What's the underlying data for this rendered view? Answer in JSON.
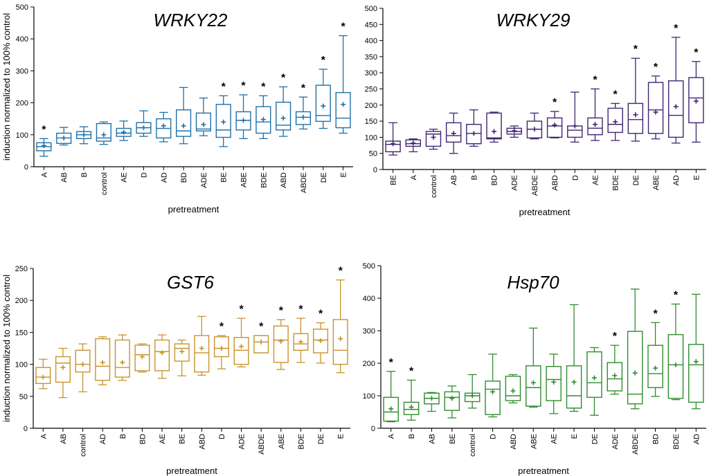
{
  "chart_data": [
    {
      "type": "boxplot",
      "title": "WRKY22",
      "xlabel": "pretreatment",
      "ylabel": "induction normalized to 100% control",
      "ylim": [
        0,
        500
      ],
      "yticks": [
        0,
        100,
        200,
        300,
        400,
        500
      ],
      "color": "#1f6fa8",
      "categories": [
        "A",
        "AB",
        "B",
        "control",
        "AE",
        "D",
        "AD",
        "BD",
        "ADE",
        "BE",
        "ABE",
        "BDE",
        "ABD",
        "ABDE",
        "DE",
        "E"
      ],
      "boxes": [
        {
          "min": 33,
          "q1": 50,
          "median": 63,
          "q3": 75,
          "max": 88,
          "mean": 66,
          "sig": true
        },
        {
          "min": 68,
          "q1": 73,
          "median": 90,
          "q3": 105,
          "max": 123,
          "mean": 90,
          "sig": false
        },
        {
          "min": 72,
          "q1": 88,
          "median": 100,
          "q3": 110,
          "max": 125,
          "mean": 100,
          "sig": false
        },
        {
          "min": 70,
          "q1": 80,
          "median": 90,
          "q3": 135,
          "max": 140,
          "mean": 100,
          "sig": false
        },
        {
          "min": 82,
          "q1": 95,
          "median": 105,
          "q3": 120,
          "max": 143,
          "mean": 108,
          "sig": false
        },
        {
          "min": 95,
          "q1": 105,
          "median": 122,
          "q3": 138,
          "max": 175,
          "mean": 122,
          "sig": false
        },
        {
          "min": 78,
          "q1": 90,
          "median": 120,
          "q3": 150,
          "max": 170,
          "mean": 128,
          "sig": false
        },
        {
          "min": 72,
          "q1": 95,
          "median": 112,
          "q3": 178,
          "max": 248,
          "mean": 128,
          "sig": false
        },
        {
          "min": 97,
          "q1": 112,
          "median": 118,
          "q3": 168,
          "max": 215,
          "mean": 132,
          "sig": false
        },
        {
          "min": 63,
          "q1": 92,
          "median": 115,
          "q3": 195,
          "max": 222,
          "mean": 140,
          "sig": true
        },
        {
          "min": 88,
          "q1": 115,
          "median": 145,
          "q3": 172,
          "max": 225,
          "mean": 145,
          "sig": true
        },
        {
          "min": 88,
          "q1": 105,
          "median": 140,
          "q3": 188,
          "max": 222,
          "mean": 148,
          "sig": true
        },
        {
          "min": 95,
          "q1": 115,
          "median": 130,
          "q3": 202,
          "max": 250,
          "mean": 152,
          "sig": true
        },
        {
          "min": 118,
          "q1": 132,
          "median": 155,
          "q3": 172,
          "max": 218,
          "mean": 155,
          "sig": true
        },
        {
          "min": 120,
          "q1": 142,
          "median": 160,
          "q3": 255,
          "max": 305,
          "mean": 190,
          "sig": true
        },
        {
          "min": 105,
          "q1": 122,
          "median": 152,
          "q3": 232,
          "max": 410,
          "mean": 195,
          "sig": true
        }
      ]
    },
    {
      "type": "boxplot",
      "title": "WRKY29",
      "xlabel": "pretreatment",
      "ylabel": "",
      "ylim": [
        0,
        500
      ],
      "yticks": [
        0,
        50,
        100,
        150,
        200,
        250,
        300,
        350,
        400,
        450,
        500
      ],
      "color": "#3d2470",
      "categories": [
        "BE",
        "A",
        "control",
        "AB",
        "B",
        "BD",
        "ADE",
        "ABDE",
        "ABD",
        "D",
        "AE",
        "BDE",
        "DE",
        "ABE",
        "AD",
        "E"
      ],
      "boxes": [
        {
          "min": 45,
          "q1": 55,
          "median": 78,
          "q3": 88,
          "max": 145,
          "mean": 80,
          "sig": false
        },
        {
          "min": 55,
          "q1": 72,
          "median": 80,
          "q3": 92,
          "max": 95,
          "mean": 82,
          "sig": false
        },
        {
          "min": 63,
          "q1": 72,
          "median": 110,
          "q3": 118,
          "max": 125,
          "mean": 100,
          "sig": false
        },
        {
          "min": 50,
          "q1": 85,
          "median": 105,
          "q3": 145,
          "max": 175,
          "mean": 112,
          "sig": false
        },
        {
          "min": 72,
          "q1": 80,
          "median": 112,
          "q3": 140,
          "max": 185,
          "mean": 112,
          "sig": false
        },
        {
          "min": 85,
          "q1": 95,
          "median": 98,
          "q3": 175,
          "max": 178,
          "mean": 118,
          "sig": false
        },
        {
          "min": 100,
          "q1": 110,
          "median": 118,
          "q3": 128,
          "max": 135,
          "mean": 120,
          "sig": false
        },
        {
          "min": 95,
          "q1": 98,
          "median": 125,
          "q3": 150,
          "max": 175,
          "mean": 125,
          "sig": false
        },
        {
          "min": 98,
          "q1": 100,
          "median": 135,
          "q3": 160,
          "max": 180,
          "mean": 138,
          "sig": true
        },
        {
          "min": 85,
          "q1": 100,
          "median": 122,
          "q3": 135,
          "max": 240,
          "mean": 135,
          "sig": false
        },
        {
          "min": 90,
          "q1": 108,
          "median": 128,
          "q3": 160,
          "max": 250,
          "mean": 140,
          "sig": true
        },
        {
          "min": 90,
          "q1": 115,
          "median": 140,
          "q3": 190,
          "max": 205,
          "mean": 148,
          "sig": true
        },
        {
          "min": 88,
          "q1": 112,
          "median": 155,
          "q3": 205,
          "max": 345,
          "mean": 170,
          "sig": true
        },
        {
          "min": 95,
          "q1": 112,
          "median": 185,
          "q3": 270,
          "max": 290,
          "mean": 178,
          "sig": true
        },
        {
          "min": 82,
          "q1": 100,
          "median": 168,
          "q3": 275,
          "max": 410,
          "mean": 195,
          "sig": true
        },
        {
          "min": 85,
          "q1": 145,
          "median": 222,
          "q3": 285,
          "max": 335,
          "mean": 212,
          "sig": true
        }
      ]
    },
    {
      "type": "boxplot",
      "title": "GST6",
      "xlabel": "pretreatment",
      "ylabel": "induction normalized to 100% control",
      "ylim": [
        0,
        250
      ],
      "yticks": [
        0,
        50,
        100,
        150,
        200,
        250
      ],
      "color": "#c8922a",
      "categories": [
        "A",
        "AB",
        "control",
        "AD",
        "B",
        "BD",
        "AE",
        "BE",
        "ABD",
        "D",
        "ADE",
        "ABDE",
        "ABE",
        "BDE",
        "DE",
        "E"
      ],
      "boxes": [
        {
          "min": 62,
          "q1": 70,
          "median": 80,
          "q3": 95,
          "max": 108,
          "mean": 80,
          "sig": false
        },
        {
          "min": 48,
          "q1": 72,
          "median": 102,
          "q3": 112,
          "max": 125,
          "mean": 95,
          "sig": false
        },
        {
          "min": 57,
          "q1": 88,
          "median": 100,
          "q3": 122,
          "max": 132,
          "mean": 100,
          "sig": false
        },
        {
          "min": 68,
          "q1": 75,
          "median": 97,
          "q3": 140,
          "max": 143,
          "mean": 103,
          "sig": false
        },
        {
          "min": 75,
          "q1": 80,
          "median": 95,
          "q3": 138,
          "max": 146,
          "mean": 103,
          "sig": false
        },
        {
          "min": 88,
          "q1": 90,
          "median": 115,
          "q3": 130,
          "max": 132,
          "mean": 112,
          "sig": false
        },
        {
          "min": 78,
          "q1": 90,
          "median": 120,
          "q3": 138,
          "max": 146,
          "mean": 118,
          "sig": false
        },
        {
          "min": 82,
          "q1": 105,
          "median": 125,
          "q3": 132,
          "max": 138,
          "mean": 120,
          "sig": false
        },
        {
          "min": 83,
          "q1": 88,
          "median": 118,
          "q3": 145,
          "max": 175,
          "mean": 125,
          "sig": false
        },
        {
          "min": 93,
          "q1": 112,
          "median": 125,
          "q3": 143,
          "max": 145,
          "mean": 125,
          "sig": true
        },
        {
          "min": 96,
          "q1": 100,
          "median": 122,
          "q3": 142,
          "max": 172,
          "mean": 128,
          "sig": true
        },
        {
          "min": 118,
          "q1": 118,
          "median": 135,
          "q3": 145,
          "max": 145,
          "mean": 135,
          "sig": true
        },
        {
          "min": 92,
          "q1": 103,
          "median": 138,
          "q3": 160,
          "max": 170,
          "mean": 136,
          "sig": true
        },
        {
          "min": 103,
          "q1": 122,
          "median": 132,
          "q3": 148,
          "max": 172,
          "mean": 135,
          "sig": true
        },
        {
          "min": 102,
          "q1": 118,
          "median": 138,
          "q3": 155,
          "max": 165,
          "mean": 137,
          "sig": true
        },
        {
          "min": 87,
          "q1": 100,
          "median": 122,
          "q3": 170,
          "max": 232,
          "mean": 140,
          "sig": true
        }
      ]
    },
    {
      "type": "boxplot",
      "title": "Hsp70",
      "xlabel": "pretreatment",
      "ylabel": "",
      "ylim": [
        0,
        500
      ],
      "yticks": [
        0,
        100,
        200,
        300,
        400,
        500
      ],
      "color": "#2e8b2e",
      "categories": [
        "A",
        "B",
        "AB",
        "BE",
        "control",
        "D",
        "ABD",
        "ABE",
        "AE",
        "E",
        "DE",
        "ADE",
        "ABDE",
        "BD",
        "BDE",
        "AD"
      ],
      "boxes": [
        {
          "min": 20,
          "q1": 22,
          "median": 50,
          "q3": 95,
          "max": 175,
          "mean": 60,
          "sig": true
        },
        {
          "min": 25,
          "q1": 42,
          "median": 58,
          "q3": 80,
          "max": 148,
          "mean": 65,
          "sig": true
        },
        {
          "min": 52,
          "q1": 75,
          "median": 92,
          "q3": 108,
          "max": 110,
          "mean": 92,
          "sig": false
        },
        {
          "min": 32,
          "q1": 55,
          "median": 95,
          "q3": 112,
          "max": 130,
          "mean": 92,
          "sig": false
        },
        {
          "min": 62,
          "q1": 82,
          "median": 100,
          "q3": 108,
          "max": 165,
          "mean": 100,
          "sig": false
        },
        {
          "min": 35,
          "q1": 42,
          "median": 120,
          "q3": 145,
          "max": 228,
          "mean": 112,
          "sig": false
        },
        {
          "min": 78,
          "q1": 85,
          "median": 100,
          "q3": 160,
          "max": 165,
          "mean": 115,
          "sig": false
        },
        {
          "min": 65,
          "q1": 68,
          "median": 125,
          "q3": 192,
          "max": 308,
          "mean": 140,
          "sig": false
        },
        {
          "min": 45,
          "q1": 85,
          "median": 150,
          "q3": 190,
          "max": 228,
          "mean": 142,
          "sig": false
        },
        {
          "min": 52,
          "q1": 62,
          "median": 100,
          "q3": 192,
          "max": 380,
          "mean": 142,
          "sig": false
        },
        {
          "min": 40,
          "q1": 95,
          "median": 140,
          "q3": 235,
          "max": 248,
          "mean": 155,
          "sig": false
        },
        {
          "min": 105,
          "q1": 115,
          "median": 152,
          "q3": 202,
          "max": 255,
          "mean": 162,
          "sig": true
        },
        {
          "min": 60,
          "q1": 75,
          "median": 105,
          "q3": 298,
          "max": 428,
          "mean": 170,
          "sig": false
        },
        {
          "min": 98,
          "q1": 125,
          "median": 168,
          "q3": 255,
          "max": 325,
          "mean": 185,
          "sig": true
        },
        {
          "min": 88,
          "q1": 92,
          "median": 195,
          "q3": 288,
          "max": 382,
          "mean": 195,
          "sig": true
        },
        {
          "min": 60,
          "q1": 80,
          "median": 195,
          "q3": 258,
          "max": 412,
          "mean": 205,
          "sig": false
        }
      ]
    }
  ]
}
